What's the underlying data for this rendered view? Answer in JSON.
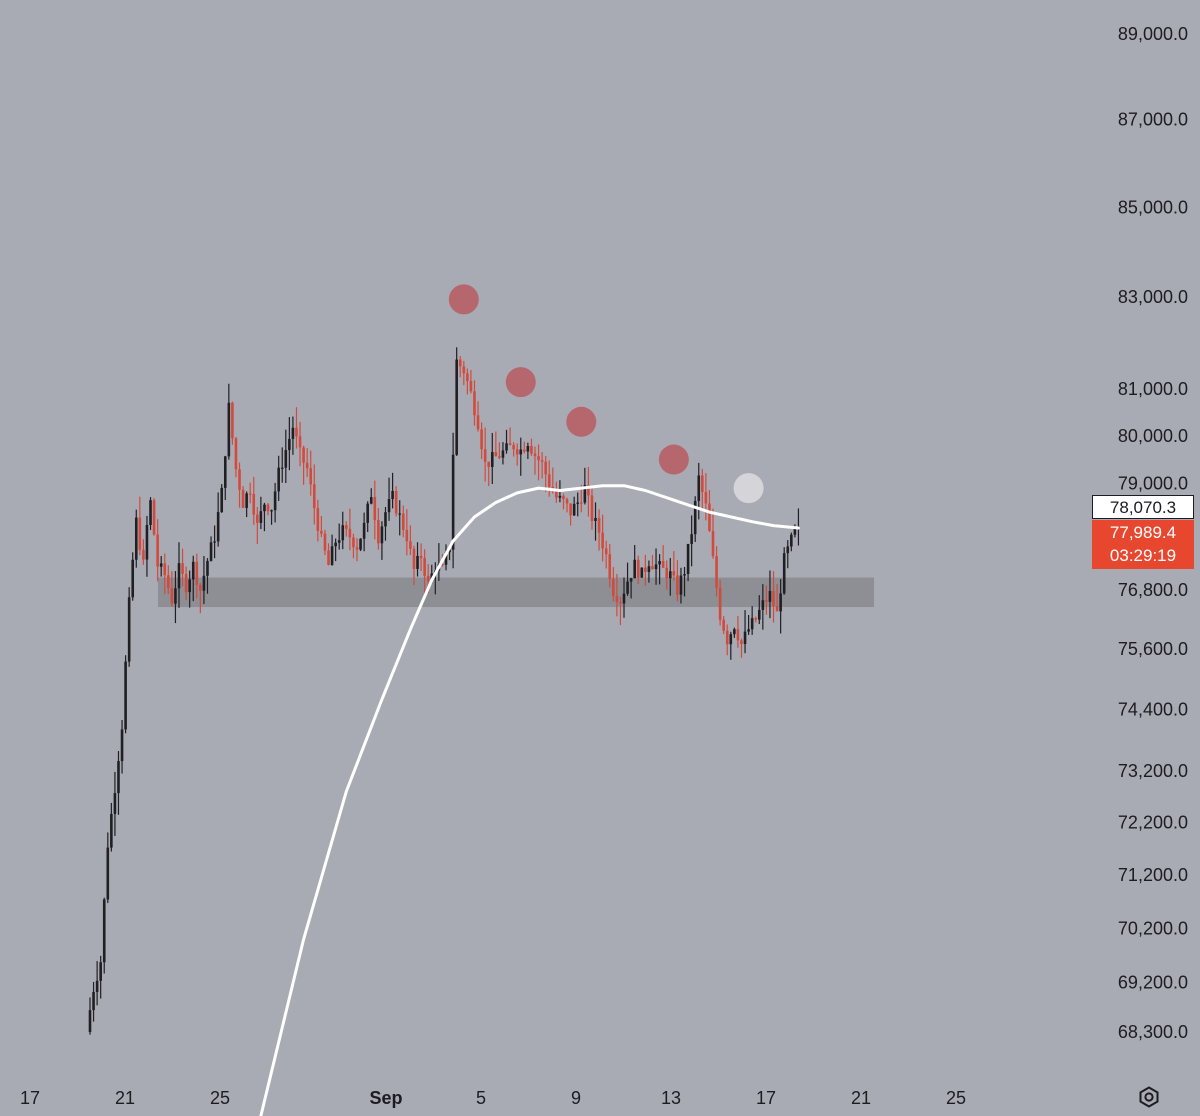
{
  "chart_data": {
    "type": "candlestick",
    "symbol_hint": "",
    "y_axis": {
      "ticks": [
        "89,000.0",
        "87,000.0",
        "85,000.0",
        "83,000.0",
        "81,000.0",
        "80,000.0",
        "79,000.0",
        "76,800.0",
        "75,600.0",
        "74,400.0",
        "73,200.0",
        "72,200.0",
        "71,200.0",
        "70,200.0",
        "69,200.0",
        "68,300.0"
      ],
      "tick_values": [
        89000,
        87000,
        85000,
        83000,
        81000,
        80000,
        79000,
        76800,
        75600,
        74400,
        73200,
        72200,
        71200,
        70200,
        69200,
        68300
      ],
      "scale": "log"
    },
    "x_axis": {
      "ticks": [
        "17",
        "21",
        "25",
        "Sep",
        "5",
        "9",
        "13",
        "17",
        "21",
        "25"
      ],
      "bold_ticks": [
        "Sep"
      ]
    },
    "moving_average_value": "78,070.3",
    "last_price": "77,989.4",
    "countdown": "03:29:19",
    "support_zone": {
      "low": 76450,
      "high": 77050
    },
    "series": [
      {
        "kind": "ohlc_path",
        "points": [
          [
            0,
            68300
          ],
          [
            2,
            69100
          ],
          [
            4,
            69600
          ],
          [
            6,
            71800
          ],
          [
            8,
            72900
          ],
          [
            10,
            74100
          ],
          [
            12,
            76500
          ],
          [
            13,
            77400
          ],
          [
            14,
            78200
          ],
          [
            16,
            77300
          ],
          [
            17,
            78100
          ],
          [
            18,
            78600
          ],
          [
            20,
            77300
          ],
          [
            22,
            77100
          ],
          [
            24,
            76600
          ],
          [
            26,
            77200
          ],
          [
            28,
            76900
          ],
          [
            30,
            77300
          ],
          [
            32,
            76800
          ],
          [
            34,
            77400
          ],
          [
            36,
            77900
          ],
          [
            38,
            78800
          ],
          [
            40,
            80600
          ],
          [
            42,
            79300
          ],
          [
            44,
            78600
          ],
          [
            46,
            78900
          ],
          [
            48,
            78100
          ],
          [
            50,
            78600
          ],
          [
            52,
            78500
          ],
          [
            54,
            79200
          ],
          [
            56,
            79700
          ],
          [
            58,
            80200
          ],
          [
            60,
            79600
          ],
          [
            62,
            79300
          ],
          [
            64,
            78500
          ],
          [
            66,
            77800
          ],
          [
            68,
            77300
          ],
          [
            70,
            77800
          ],
          [
            72,
            78000
          ],
          [
            74,
            77900
          ],
          [
            76,
            77700
          ],
          [
            78,
            78100
          ],
          [
            80,
            78800
          ],
          [
            82,
            77900
          ],
          [
            84,
            78400
          ],
          [
            86,
            78700
          ],
          [
            88,
            78300
          ],
          [
            90,
            77900
          ],
          [
            92,
            77200
          ],
          [
            94,
            77500
          ],
          [
            96,
            76900
          ],
          [
            98,
            77300
          ],
          [
            100,
            77200
          ],
          [
            102,
            77700
          ],
          [
            104,
            81600
          ],
          [
            106,
            81400
          ],
          [
            108,
            80900
          ],
          [
            110,
            80300
          ],
          [
            112,
            79400
          ],
          [
            114,
            79500
          ],
          [
            116,
            79600
          ],
          [
            118,
            79700
          ],
          [
            120,
            79800
          ],
          [
            122,
            79700
          ],
          [
            124,
            79900
          ],
          [
            126,
            79600
          ],
          [
            128,
            79400
          ],
          [
            130,
            79000
          ],
          [
            132,
            78700
          ],
          [
            134,
            78600
          ],
          [
            136,
            78400
          ],
          [
            138,
            78600
          ],
          [
            140,
            78900
          ],
          [
            142,
            78300
          ],
          [
            144,
            78000
          ],
          [
            146,
            77500
          ],
          [
            148,
            76800
          ],
          [
            150,
            76600
          ],
          [
            152,
            77000
          ],
          [
            154,
            77300
          ],
          [
            156,
            77100
          ],
          [
            158,
            77400
          ],
          [
            160,
            77300
          ],
          [
            162,
            77200
          ],
          [
            164,
            77100
          ],
          [
            166,
            76800
          ],
          [
            168,
            77200
          ],
          [
            170,
            78000
          ],
          [
            172,
            79100
          ],
          [
            174,
            78500
          ],
          [
            176,
            77400
          ],
          [
            178,
            76300
          ],
          [
            180,
            75800
          ],
          [
            182,
            76100
          ],
          [
            184,
            75700
          ],
          [
            186,
            76000
          ],
          [
            188,
            76200
          ],
          [
            190,
            76500
          ],
          [
            192,
            76700
          ],
          [
            194,
            76300
          ],
          [
            196,
            77400
          ],
          [
            198,
            77800
          ],
          [
            199,
            77989.4
          ]
        ]
      }
    ],
    "moving_average": [
      [
        48,
        66800
      ],
      [
        60,
        70000
      ],
      [
        72,
        72800
      ],
      [
        82,
        74600
      ],
      [
        90,
        76000
      ],
      [
        96,
        77000
      ],
      [
        102,
        77800
      ],
      [
        108,
        78300
      ],
      [
        114,
        78600
      ],
      [
        120,
        78800
      ],
      [
        126,
        78900
      ],
      [
        132,
        78850
      ],
      [
        138,
        78900
      ],
      [
        144,
        78950
      ],
      [
        150,
        78950
      ],
      [
        156,
        78850
      ],
      [
        162,
        78700
      ],
      [
        168,
        78550
      ],
      [
        174,
        78400
      ],
      [
        180,
        78300
      ],
      [
        186,
        78200
      ],
      [
        192,
        78120
      ],
      [
        199,
        78070.3
      ]
    ],
    "markers": [
      {
        "x": 105,
        "price": 82950,
        "color": "#b75f65"
      },
      {
        "x": 121,
        "price": 81150,
        "color": "#b75f65"
      },
      {
        "x": 138,
        "price": 80300,
        "color": "#b75f65"
      },
      {
        "x": 164,
        "price": 79500,
        "color": "#b75f65"
      },
      {
        "x": 185,
        "price": 78900,
        "color": "#d9d9dd"
      }
    ]
  },
  "colors": {
    "up": "#1f1f24",
    "down": "#d24a3c",
    "ma_line": "#ffffff",
    "zone": "#8c8d94",
    "background": "#a9abb4",
    "axis_text": "#1c1c22"
  },
  "icons": {
    "settings": "settings-icon"
  }
}
